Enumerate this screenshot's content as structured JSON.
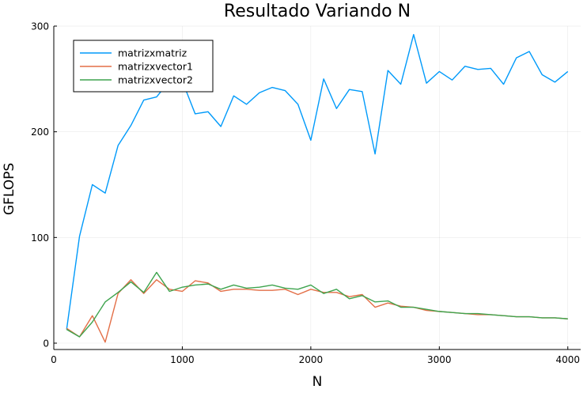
{
  "chart_data": {
    "type": "line",
    "title": "Resultado Variando N",
    "xlabel": "N",
    "ylabel": "GFLOPS",
    "xlim": [
      0,
      4100
    ],
    "ylim": [
      -6,
      300
    ],
    "xticks": [
      0,
      1000,
      2000,
      3000,
      4000
    ],
    "yticks": [
      0,
      100,
      200,
      300
    ],
    "xtick_labels": [
      "0",
      "1000",
      "2000",
      "3000",
      "4000"
    ],
    "ytick_labels": [
      "0",
      "100",
      "200",
      "300"
    ],
    "grid": true,
    "legend_position": "top-left",
    "x": [
      100,
      200,
      300,
      400,
      500,
      600,
      700,
      800,
      900,
      1000,
      1100,
      1200,
      1300,
      1400,
      1500,
      1600,
      1700,
      1800,
      1900,
      2000,
      2100,
      2200,
      2300,
      2400,
      2500,
      2600,
      2700,
      2800,
      2900,
      3000,
      3100,
      3200,
      3300,
      3400,
      3500,
      3600,
      3700,
      3800,
      3900,
      4000
    ],
    "series": [
      {
        "name": "matrizxmatriz",
        "color": "#009AFA",
        "values": [
          13,
          101,
          150,
          142,
          187,
          206,
          230,
          233,
          248,
          248,
          217,
          219,
          205,
          234,
          226,
          237,
          242,
          239,
          226,
          192,
          250,
          222,
          240,
          238,
          179,
          258,
          245,
          292,
          246,
          257,
          249,
          262,
          259,
          260,
          245,
          270,
          276,
          254,
          247,
          257
        ]
      },
      {
        "name": "matrizxvector1",
        "color": "#E36F47",
        "values": [
          14,
          6,
          26,
          1,
          47,
          60,
          47,
          60,
          51,
          49,
          59,
          57,
          49,
          51,
          51,
          50,
          50,
          51,
          46,
          51,
          48,
          48,
          44,
          46,
          34,
          38,
          35,
          34,
          31,
          30,
          29,
          28,
          27,
          27,
          26,
          25,
          25,
          24,
          24,
          23
        ]
      },
      {
        "name": "matrizxvector2",
        "color": "#3EA44E",
        "values": [
          13,
          6,
          20,
          39,
          48,
          58,
          48,
          67,
          49,
          53,
          55,
          56,
          51,
          55,
          52,
          53,
          55,
          52,
          51,
          55,
          47,
          51,
          42,
          45,
          39,
          40,
          34,
          34,
          32,
          30,
          29,
          28,
          28,
          27,
          26,
          25,
          25,
          24,
          24,
          23
        ]
      }
    ]
  }
}
